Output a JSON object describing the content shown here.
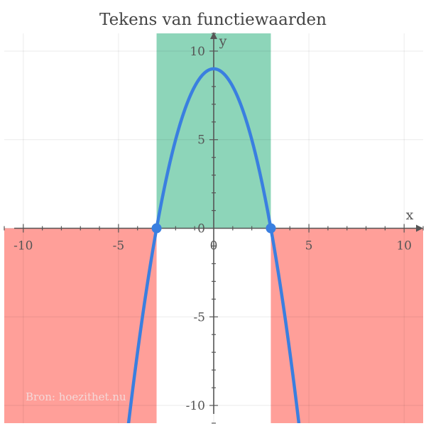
{
  "chart_data": {
    "type": "line",
    "title": "Tekens van functiewaarden",
    "xlabel": "x",
    "ylabel": "y",
    "xlim": [
      -11,
      11
    ],
    "ylim": [
      -11,
      11
    ],
    "grid": true,
    "x_ticks": [
      -10,
      -5,
      0,
      5,
      10
    ],
    "y_ticks": [
      -10,
      -5,
      0,
      5,
      10
    ],
    "x_tick_labels": [
      "-10",
      "-5",
      "0",
      "5",
      "10"
    ],
    "y_tick_labels": [
      "-10",
      "-5",
      "5",
      "10"
    ],
    "origin_label": "0",
    "series": [
      {
        "function": "y = 9 - x^2",
        "color": "#3a7fe0",
        "x": [
          -4.5,
          -4,
          -3.5,
          -3,
          -2.5,
          -2,
          -1.5,
          -1,
          -0.5,
          0,
          0.5,
          1,
          1.5,
          2,
          2.5,
          3,
          3.5,
          4,
          4.5
        ],
        "y": [
          -11.25,
          -7,
          -3.25,
          0,
          2.75,
          5,
          6.75,
          8,
          8.75,
          9,
          8.75,
          8,
          6.75,
          5,
          2.75,
          0,
          -3.25,
          -7,
          -11.25
        ]
      }
    ],
    "zeros": [
      {
        "x": -3,
        "y": 0
      },
      {
        "x": 3,
        "y": 0
      }
    ],
    "regions": [
      {
        "sign": "negative",
        "x_from": -11,
        "x_to": -3,
        "color": "#ff9f99"
      },
      {
        "sign": "positive",
        "x_from": -3,
        "x_to": 3,
        "color": "#8dd5b9"
      },
      {
        "sign": "negative",
        "x_from": 3,
        "x_to": 11,
        "color": "#ff9f99"
      }
    ],
    "zero_marker_color": "#3a7fe0",
    "axis_color": "#555555"
  },
  "watermark": "Bron: hoezithet.nu"
}
